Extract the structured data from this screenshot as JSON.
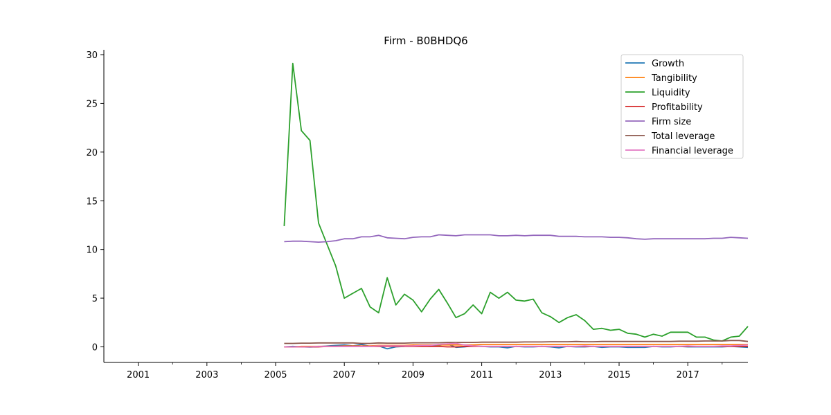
{
  "chart_data": {
    "type": "line",
    "title": "Firm - B0BHDQ6",
    "xlabel": "",
    "ylabel": "",
    "xlim": [
      2000.0,
      2018.75
    ],
    "ylim": [
      -1.6,
      30.5
    ],
    "x_ticks": [
      {
        "value": 2001,
        "label": "2001"
      },
      {
        "value": 2003,
        "label": "2003"
      },
      {
        "value": 2005,
        "label": "2005"
      },
      {
        "value": 2007,
        "label": "2007"
      },
      {
        "value": 2009,
        "label": "2009"
      },
      {
        "value": 2011,
        "label": "2011"
      },
      {
        "value": 2013,
        "label": "2013"
      },
      {
        "value": 2015,
        "label": "2015"
      },
      {
        "value": 2017,
        "label": "2017"
      }
    ],
    "x_minor_ticks": [
      2002,
      2004,
      2006,
      2008,
      2010,
      2012,
      2014,
      2016,
      2018
    ],
    "y_ticks": [
      {
        "value": 0,
        "label": "0"
      },
      {
        "value": 5,
        "label": "5"
      },
      {
        "value": 10,
        "label": "10"
      },
      {
        "value": 15,
        "label": "15"
      },
      {
        "value": 20,
        "label": "20"
      },
      {
        "value": 25,
        "label": "25"
      },
      {
        "value": 30,
        "label": "30"
      }
    ],
    "grid": false,
    "legend_position": "top-right",
    "x": [
      2005.25,
      2005.5,
      2005.75,
      2006.0,
      2006.25,
      2006.5,
      2006.75,
      2007.0,
      2007.25,
      2007.5,
      2007.75,
      2008.0,
      2008.25,
      2008.5,
      2008.75,
      2009.0,
      2009.25,
      2009.5,
      2009.75,
      2010.0,
      2010.25,
      2010.5,
      2010.75,
      2011.0,
      2011.25,
      2011.5,
      2011.75,
      2012.0,
      2012.25,
      2012.5,
      2012.75,
      2013.0,
      2013.25,
      2013.5,
      2013.75,
      2014.0,
      2014.25,
      2014.5,
      2014.75,
      2015.0,
      2015.25,
      2015.5,
      2015.75,
      2016.0,
      2016.25,
      2016.5,
      2016.75,
      2017.0,
      2017.25,
      2017.5,
      2017.75,
      2018.0,
      2018.25,
      2018.5,
      2018.75
    ],
    "series": [
      {
        "name": "Growth",
        "color": "#1f77b4",
        "values": [
          0.0,
          0.05,
          0.0,
          -0.02,
          0.02,
          0.08,
          0.15,
          0.2,
          0.1,
          0.25,
          0.05,
          0.1,
          -0.2,
          0.0,
          0.05,
          0.2,
          0.1,
          0.05,
          0.15,
          0.3,
          -0.05,
          0.0,
          0.1,
          0.05,
          0.0,
          0.0,
          -0.1,
          0.05,
          0.0,
          0.0,
          0.05,
          0.0,
          -0.1,
          0.05,
          0.0,
          0.0,
          0.05,
          -0.05,
          0.0,
          0.0,
          -0.05,
          -0.05,
          -0.05,
          0.05,
          0.0,
          0.0,
          0.05,
          0.0,
          0.0,
          0.0,
          0.0,
          0.0,
          0.05,
          0.0,
          -0.05
        ]
      },
      {
        "name": "Tangibility",
        "color": "#ff7f0e",
        "values": [
          0.0,
          0.0,
          0.05,
          0.05,
          0.05,
          0.05,
          0.05,
          0.1,
          0.1,
          0.1,
          0.1,
          0.15,
          0.15,
          0.15,
          0.15,
          0.2,
          0.2,
          0.2,
          0.2,
          0.2,
          0.2,
          0.2,
          0.2,
          0.25,
          0.25,
          0.25,
          0.25,
          0.25,
          0.25,
          0.25,
          0.25,
          0.25,
          0.25,
          0.25,
          0.25,
          0.25,
          0.25,
          0.25,
          0.25,
          0.25,
          0.25,
          0.25,
          0.25,
          0.25,
          0.25,
          0.25,
          0.25,
          0.25,
          0.25,
          0.25,
          0.25,
          0.25,
          0.25,
          0.25,
          0.25
        ]
      },
      {
        "name": "Liquidity",
        "color": "#2ca02c",
        "values": [
          12.4,
          29.1,
          22.2,
          21.2,
          12.7,
          10.5,
          8.3,
          5.0,
          5.5,
          6.0,
          4.1,
          3.5,
          7.1,
          4.3,
          5.4,
          4.8,
          3.6,
          4.9,
          5.9,
          4.5,
          3.0,
          3.4,
          4.3,
          3.4,
          5.6,
          5.0,
          5.6,
          4.8,
          4.7,
          4.9,
          3.5,
          3.1,
          2.5,
          3.0,
          3.3,
          2.7,
          1.8,
          1.9,
          1.7,
          1.8,
          1.4,
          1.3,
          1.0,
          1.3,
          1.1,
          1.5,
          1.5,
          1.5,
          1.0,
          1.0,
          0.7,
          0.6,
          1.0,
          1.1,
          2.1
        ]
      },
      {
        "name": "Profitability",
        "color": "#d62728",
        "values": [
          0.0,
          0.0,
          0.0,
          0.0,
          0.0,
          0.05,
          0.05,
          0.05,
          0.05,
          0.05,
          0.05,
          0.05,
          0.05,
          0.05,
          0.05,
          0.05,
          0.05,
          0.05,
          0.05,
          0.0,
          0.0,
          0.05,
          0.05,
          0.05,
          0.05,
          0.05,
          0.05,
          0.05,
          0.05,
          0.05,
          0.05,
          0.05,
          0.05,
          0.05,
          0.05,
          0.05,
          0.05,
          0.05,
          0.05,
          0.05,
          0.05,
          0.05,
          0.05,
          0.05,
          0.05,
          0.05,
          0.05,
          0.05,
          0.05,
          0.05,
          0.05,
          0.05,
          0.05,
          0.05,
          0.05
        ]
      },
      {
        "name": "Firm size",
        "color": "#9467bd",
        "values": [
          10.8,
          10.85,
          10.85,
          10.8,
          10.75,
          10.8,
          10.9,
          11.1,
          11.1,
          11.3,
          11.3,
          11.45,
          11.2,
          11.15,
          11.1,
          11.25,
          11.3,
          11.3,
          11.5,
          11.45,
          11.4,
          11.5,
          11.5,
          11.5,
          11.5,
          11.4,
          11.4,
          11.45,
          11.4,
          11.45,
          11.45,
          11.45,
          11.35,
          11.35,
          11.35,
          11.3,
          11.3,
          11.3,
          11.25,
          11.25,
          11.2,
          11.1,
          11.05,
          11.1,
          11.1,
          11.1,
          11.1,
          11.1,
          11.1,
          11.1,
          11.15,
          11.15,
          11.25,
          11.2,
          11.15
        ]
      },
      {
        "name": "Total leverage",
        "color": "#8c564b",
        "values": [
          0.35,
          0.35,
          0.38,
          0.38,
          0.4,
          0.4,
          0.4,
          0.4,
          0.4,
          0.35,
          0.35,
          0.4,
          0.38,
          0.38,
          0.38,
          0.42,
          0.42,
          0.42,
          0.42,
          0.45,
          0.45,
          0.45,
          0.45,
          0.48,
          0.48,
          0.48,
          0.48,
          0.48,
          0.5,
          0.5,
          0.5,
          0.52,
          0.52,
          0.52,
          0.55,
          0.52,
          0.52,
          0.55,
          0.55,
          0.55,
          0.55,
          0.55,
          0.55,
          0.55,
          0.55,
          0.55,
          0.58,
          0.58,
          0.58,
          0.6,
          0.6,
          0.6,
          0.65,
          0.65,
          0.55
        ]
      },
      {
        "name": "Financial leverage",
        "color": "#e377c2",
        "values": [
          0.0,
          0.0,
          0.0,
          0.0,
          0.05,
          0.05,
          0.05,
          0.05,
          0.05,
          0.05,
          0.05,
          0.1,
          0.1,
          0.1,
          0.1,
          0.1,
          0.15,
          0.15,
          0.25,
          0.3,
          0.35,
          0.2,
          0.1,
          0.05,
          0.05,
          0.05,
          0.05,
          0.05,
          0.05,
          0.05,
          0.05,
          0.05,
          0.05,
          0.05,
          0.05,
          0.1,
          0.05,
          0.05,
          0.05,
          0.05,
          0.05,
          0.05,
          0.05,
          0.05,
          0.05,
          0.05,
          0.05,
          0.1,
          0.05,
          0.05,
          0.05,
          0.1,
          0.1,
          0.15,
          0.2
        ]
      }
    ]
  }
}
